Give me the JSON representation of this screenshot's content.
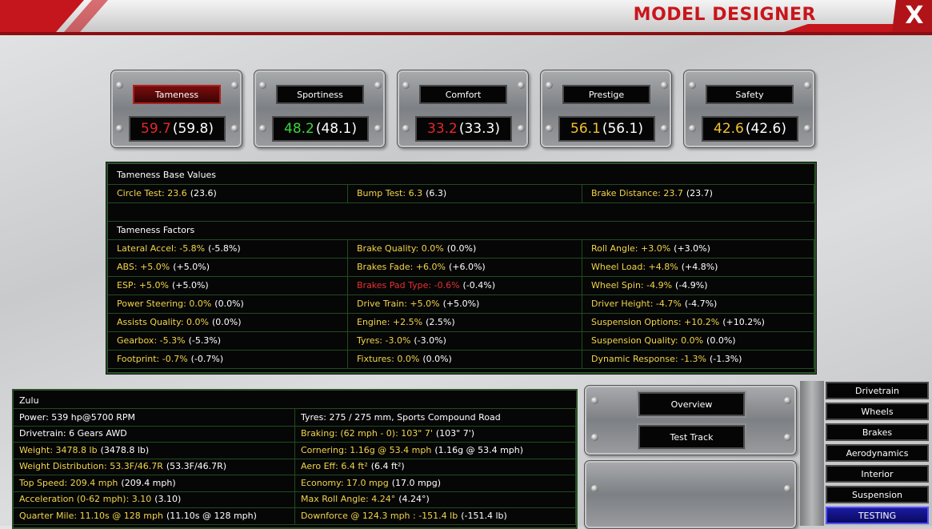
{
  "header": {
    "title": "MODEL DESIGNER",
    "close": "X"
  },
  "ratings": [
    {
      "label": "Tameness",
      "value": "59.7",
      "previous": "(59.8)",
      "color": "#e8262a",
      "active": true
    },
    {
      "label": "Sportiness",
      "value": "48.2",
      "previous": "(48.1)",
      "color": "#3ad43a",
      "active": false
    },
    {
      "label": "Comfort",
      "value": "33.2",
      "previous": "(33.3)",
      "color": "#e8262a",
      "active": false
    },
    {
      "label": "Prestige",
      "value": "56.1",
      "previous": "(56.1)",
      "color": "#f2c230",
      "active": false
    },
    {
      "label": "Safety",
      "value": "42.6",
      "previous": "(42.6)",
      "color": "#f2c230",
      "active": false
    }
  ],
  "details": {
    "title": "Tameness Base Values",
    "base": [
      {
        "text": "Circle Test: 23.6",
        "previous": "(23.6)"
      },
      {
        "text": "Bump Test: 6.3",
        "previous": "(6.3)"
      },
      {
        "text": "Brake Distance: 23.7",
        "previous": "(23.7)"
      }
    ],
    "factors_title": "Tameness Factors",
    "factors": [
      [
        {
          "text": "Lateral Accel: -5.8%",
          "previous": "(-5.8%)"
        },
        {
          "text": "Brake Quality: 0.0%",
          "previous": "(0.0%)"
        },
        {
          "text": "Roll Angle: +3.0%",
          "previous": "(+3.0%)"
        }
      ],
      [
        {
          "text": "ABS: +5.0%",
          "previous": "(+5.0%)"
        },
        {
          "text": "Brakes Fade: +6.0%",
          "previous": "(+6.0%)"
        },
        {
          "text": "Wheel Load: +4.8%",
          "previous": "(+4.8%)"
        }
      ],
      [
        {
          "text": "ESP: +5.0%",
          "previous": "(+5.0%)"
        },
        {
          "text": "Brakes Pad Type: -0.6%",
          "previous": "(-0.4%)",
          "alert": true
        },
        {
          "text": "Wheel Spin: -4.9%",
          "previous": "(-4.9%)"
        }
      ],
      [
        {
          "text": "Power Steering: 0.0%",
          "previous": "(0.0%)"
        },
        {
          "text": "Drive Train: +5.0%",
          "previous": "(+5.0%)"
        },
        {
          "text": "Driver Height: -4.7%",
          "previous": "(-4.7%)"
        }
      ],
      [
        {
          "text": "Assists Quality: 0.0%",
          "previous": "(0.0%)"
        },
        {
          "text": "Engine: +2.5%",
          "previous": "(2.5%)"
        },
        {
          "text": "Suspension Options: +10.2%",
          "previous": "(+10.2%)"
        }
      ],
      [
        {
          "text": "Gearbox: -5.3%",
          "previous": "(-5.3%)"
        },
        {
          "text": "Tyres: -3.0%",
          "previous": "(-3.0%)"
        },
        {
          "text": "Suspension Quality: 0.0%",
          "previous": "(0.0%)"
        }
      ],
      [
        {
          "text": "Footprint: -0.7%",
          "previous": "(-0.7%)"
        },
        {
          "text": "Fixtures: 0.0%",
          "previous": "(0.0%)"
        },
        {
          "text": "Dynamic Response: -1.3%",
          "previous": "(-1.3%)"
        }
      ]
    ]
  },
  "car": {
    "name": "Zulu",
    "rows": [
      [
        {
          "text": "Power: 539 hp@5700 RPM"
        },
        {
          "text": "Tyres: 275 / 275 mm, Sports Compound Road"
        }
      ],
      [
        {
          "text": "Drivetrain: 6 Gears AWD"
        },
        {
          "text": "Braking: (62 mph - 0): 103\" 7'",
          "previous": "(103\" 7')"
        }
      ],
      [
        {
          "text": "Weight: 3478.8 lb",
          "previous": "(3478.8 lb)"
        },
        {
          "text": "Cornering: 1.16g @ 53.4 mph",
          "previous": "(1.16g @ 53.4 mph)"
        }
      ],
      [
        {
          "text": "Weight Distribution: 53.3F/46.7R",
          "previous": "(53.3F/46.7R)"
        },
        {
          "text": "Aero Eff: 6.4 ft²",
          "previous": "(6.4 ft²)"
        }
      ],
      [
        {
          "text": "Top Speed: 209.4 mph",
          "previous": "(209.4 mph)"
        },
        {
          "text": "Economy: 17.0 mpg",
          "previous": "(17.0 mpg)"
        }
      ],
      [
        {
          "text": "Acceleration (0-62 mph): 3.10",
          "previous": "(3.10)"
        },
        {
          "text": "Max Roll Angle: 4.24°",
          "previous": "(4.24°)"
        }
      ],
      [
        {
          "text": "Quarter Mile: 11.10s @ 128 mph",
          "previous": "(11.10s @ 128 mph)"
        },
        {
          "text": "Downforce @ 124.3 mph : -151.4 lb",
          "previous": "(-151.4 lb)"
        }
      ]
    ]
  },
  "actions": [
    "Overview",
    "Test Track"
  ],
  "tabs": [
    {
      "label": "Drivetrain",
      "active": false
    },
    {
      "label": "Wheels",
      "active": false
    },
    {
      "label": "Brakes",
      "active": false
    },
    {
      "label": "Aerodynamics",
      "active": false
    },
    {
      "label": "Interior",
      "active": false
    },
    {
      "label": "Suspension",
      "active": false
    },
    {
      "label": "TESTING",
      "active": true
    }
  ]
}
